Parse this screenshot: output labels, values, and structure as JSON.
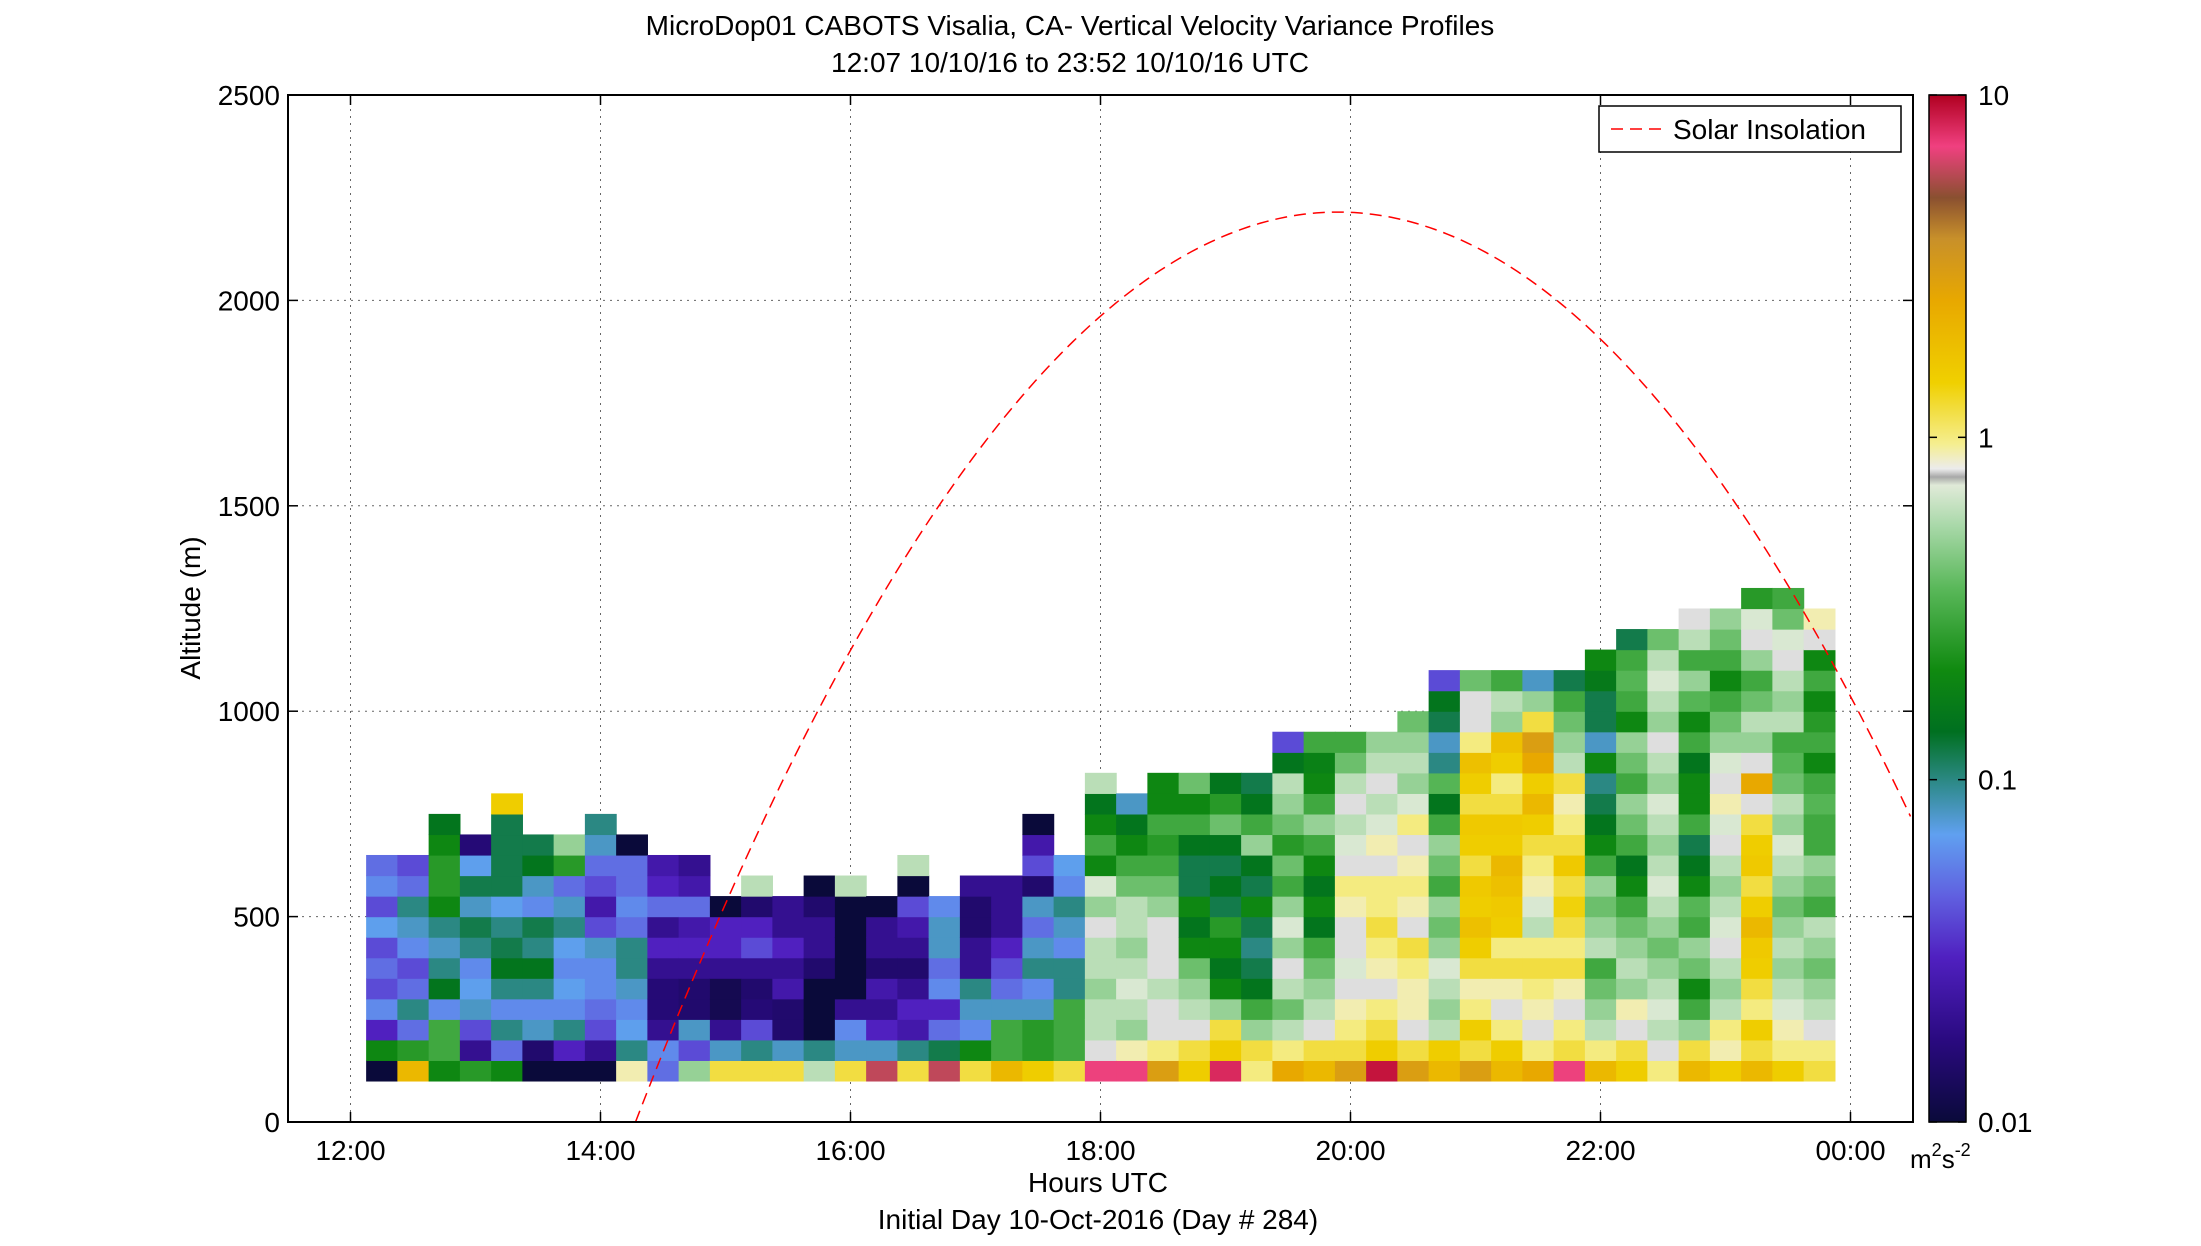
{
  "chart_data": {
    "type": "heatmap",
    "title_line1": "MicroDop01 CABOTS Visalia, CA- Vertical Velocity Variance Profiles",
    "title_line2": "12:07 10/10/16 to 23:52 10/10/16  UTC",
    "xlabel": "Hours UTC",
    "xlabel2": "Initial Day 10-Oct-2016 (Day # 284)",
    "ylabel": "Altitude (m)",
    "xlim": [
      11.5,
      24.5
    ],
    "ylim": [
      0,
      2500
    ],
    "x_ticks": [
      12,
      14,
      16,
      18,
      20,
      22,
      24
    ],
    "x_tick_labels": [
      "12:00",
      "14:00",
      "16:00",
      "18:00",
      "20:00",
      "22:00",
      "00:00"
    ],
    "y_ticks": [
      0,
      500,
      1000,
      1500,
      2000,
      2500
    ],
    "y_tick_labels": [
      "0",
      "500",
      "1000",
      "1500",
      "2000",
      "2500"
    ],
    "grid": true,
    "legend": {
      "position": "top-right",
      "entries": [
        {
          "label": "Solar Insolation",
          "color": "#ff0000",
          "style": "dashed"
        }
      ]
    },
    "colorbar": {
      "scale": "log",
      "range": [
        0.01,
        10
      ],
      "tick_values": [
        0.01,
        0.1,
        1,
        10
      ],
      "tick_labels": [
        "0.01",
        "0.1",
        "1",
        "10"
      ],
      "unit_base": "m",
      "unit_exp1": "2",
      "unit_mid": "s",
      "unit_exp2": "-2",
      "stops": [
        {
          "v": 0.0,
          "c": "#0a0a3a"
        },
        {
          "v": 0.08,
          "c": "#2a0a80"
        },
        {
          "v": 0.16,
          "c": "#5020c0"
        },
        {
          "v": 0.22,
          "c": "#6060e0"
        },
        {
          "v": 0.28,
          "c": "#60a0f0"
        },
        {
          "v": 0.33,
          "c": "#2e8a8a"
        },
        {
          "v": 0.38,
          "c": "#007020"
        },
        {
          "v": 0.44,
          "c": "#108a10"
        },
        {
          "v": 0.52,
          "c": "#5ab85a"
        },
        {
          "v": 0.58,
          "c": "#a8d8a8"
        },
        {
          "v": 0.62,
          "c": "#e0ead8"
        },
        {
          "v": 0.628,
          "c": "#a8a8a8"
        },
        {
          "v": 0.636,
          "c": "#ececec"
        },
        {
          "v": 0.66,
          "c": "#f5ee90"
        },
        {
          "v": 0.72,
          "c": "#f0d000"
        },
        {
          "v": 0.8,
          "c": "#e8a800"
        },
        {
          "v": 0.86,
          "c": "#c8902a"
        },
        {
          "v": 0.9,
          "c": "#8a5030"
        },
        {
          "v": 0.95,
          "c": "#f04080"
        },
        {
          "v": 1.0,
          "c": "#b00020"
        }
      ]
    },
    "time_bins": [
      12.25,
      12.5,
      12.75,
      13.0,
      13.25,
      13.5,
      13.75,
      14.0,
      14.25,
      14.5,
      14.75,
      15.0,
      15.25,
      15.5,
      15.75,
      16.0,
      16.25,
      16.5,
      16.75,
      17.0,
      17.25,
      17.5,
      17.75,
      18.0,
      18.25,
      18.5,
      18.75,
      19.0,
      19.25,
      19.5,
      19.75,
      20.0,
      20.25,
      20.5,
      20.75,
      21.0,
      21.25,
      21.5,
      21.75,
      22.0,
      22.25,
      22.5,
      22.75,
      23.0,
      23.25,
      23.5,
      23.75
    ],
    "bin_width_hours": 0.25,
    "gate_bottom_m": 100,
    "gate_height_m": 50,
    "variance_columns": [
      [
        0.01,
        0.2,
        0.03,
        0.06,
        0.04,
        0.05,
        0.04,
        0.07,
        0.04,
        0.06,
        0.05
      ],
      [
        2.0,
        0.25,
        0.05,
        0.1,
        0.05,
        0.04,
        0.06,
        0.08,
        0.1,
        0.05,
        0.04
      ],
      [
        0.2,
        0.3,
        0.3,
        0.06,
        0.15,
        0.1,
        0.08,
        0.1,
        0.2,
        0.25,
        0.25,
        0.2,
        0.15
      ],
      [
        0.25,
        0.02,
        0.04,
        0.08,
        0.07,
        0.06,
        0.1,
        0.12,
        0.08,
        0.12,
        0.07,
        0.016
      ],
      [
        0.2,
        0.05,
        0.1,
        0.06,
        0.1,
        0.15,
        0.12,
        0.1,
        0.07,
        0.12,
        0.12,
        0.12,
        0.12,
        1.5
      ],
      [
        0.01,
        0.015,
        0.08,
        0.06,
        0.1,
        0.15,
        0.1,
        0.12,
        0.06,
        0.08,
        0.15,
        0.12
      ],
      [
        0.01,
        0.03,
        0.1,
        0.06,
        0.07,
        0.06,
        0.07,
        0.1,
        0.08,
        0.05,
        0.25,
        0.5
      ],
      [
        0.01,
        0.02,
        0.04,
        0.05,
        0.06,
        0.06,
        0.08,
        0.04,
        0.025,
        0.04,
        0.05,
        0.08,
        0.1
      ],
      [
        0.9,
        0.1,
        0.07,
        0.06,
        0.08,
        0.1,
        0.1,
        0.05,
        0.06,
        0.05,
        0.05,
        0.01
      ],
      [
        0.05,
        0.06,
        0.02,
        0.016,
        0.016,
        0.02,
        0.03,
        0.02,
        0.05,
        0.03,
        0.025
      ],
      [
        0.5,
        0.04,
        0.08,
        0.015,
        0.015,
        0.02,
        0.03,
        0.025,
        0.05,
        0.025,
        0.02
      ],
      [
        1.2,
        0.08,
        0.02,
        0.012,
        0.012,
        0.02,
        0.03,
        0.03,
        0.01
      ],
      [
        1.2,
        0.1,
        0.04,
        0.016,
        0.015,
        0.02,
        0.04,
        0.03,
        0.015,
        0.6
      ],
      [
        1.2,
        0.08,
        0.015,
        0.015,
        0.025,
        0.02,
        0.03,
        0.02,
        0.02
      ],
      [
        0.6,
        0.1,
        0.01,
        0.01,
        0.01,
        0.015,
        0.02,
        0.02,
        0.015,
        0.01
      ],
      [
        1.2,
        0.08,
        0.06,
        0.02,
        0.01,
        0.01,
        0.01,
        0.01,
        0.01,
        0.6
      ],
      [
        6.0,
        0.08,
        0.03,
        0.02,
        0.025,
        0.015,
        0.02,
        0.02,
        0.01
      ],
      [
        1.2,
        0.1,
        0.025,
        0.03,
        0.02,
        0.015,
        0.02,
        0.025,
        0.04,
        0.01,
        0.6
      ],
      [
        6.0,
        0.12,
        0.05,
        0.03,
        0.06,
        0.05,
        0.08,
        0.08,
        0.06
      ],
      [
        1.2,
        0.2,
        0.06,
        0.08,
        0.1,
        0.02,
        0.02,
        0.015,
        0.015,
        0.02
      ],
      [
        2.0,
        0.3,
        0.3,
        0.08,
        0.05,
        0.04,
        0.03,
        0.02,
        0.02,
        0.02
      ],
      [
        1.5,
        0.25,
        0.25,
        0.08,
        0.06,
        0.1,
        0.08,
        0.05,
        0.08,
        0.015,
        0.04,
        0.025,
        0.01
      ],
      [
        1.2,
        0.3,
        0.3,
        0.3,
        0.1,
        0.1,
        0.06,
        0.08,
        0.1,
        0.06,
        0.07
      ],
      [
        7.0,
        0.8,
        0.6,
        0.6,
        0.5,
        0.6,
        0.6,
        0.8,
        0.5,
        0.7,
        0.2,
        0.3,
        0.2,
        0.15,
        0.6
      ],
      [
        7.0,
        0.9,
        0.5,
        0.6,
        0.7,
        0.6,
        0.5,
        0.6,
        0.6,
        0.4,
        0.3,
        0.2,
        0.15,
        0.08
      ],
      [
        3.0,
        1.0,
        0.8,
        0.8,
        0.6,
        0.8,
        0.8,
        0.8,
        0.5,
        0.4,
        0.3,
        0.25,
        0.3,
        0.2,
        0.2
      ],
      [
        1.5,
        1.2,
        0.8,
        0.6,
        0.5,
        0.4,
        0.2,
        0.15,
        0.2,
        0.12,
        0.12,
        0.15,
        0.3,
        0.2,
        0.4
      ],
      [
        8.0,
        1.5,
        1.2,
        0.5,
        0.2,
        0.15,
        0.2,
        0.25,
        0.12,
        0.15,
        0.12,
        0.15,
        0.4,
        0.25,
        0.15
      ],
      [
        1.0,
        1.2,
        0.5,
        0.3,
        0.15,
        0.12,
        0.1,
        0.12,
        0.2,
        0.12,
        0.15,
        0.5,
        0.3,
        0.15,
        0.12
      ],
      [
        2.5,
        1.0,
        0.6,
        0.4,
        0.6,
        0.8,
        0.5,
        0.7,
        0.5,
        0.3,
        0.4,
        0.25,
        0.4,
        0.5,
        0.6,
        0.15,
        0.04
      ],
      [
        2.0,
        1.2,
        0.8,
        0.6,
        0.5,
        0.4,
        0.3,
        0.15,
        0.2,
        0.15,
        0.2,
        0.3,
        0.5,
        0.3,
        0.2,
        0.18,
        0.3
      ],
      [
        3.0,
        1.2,
        1.0,
        0.9,
        0.8,
        0.7,
        0.8,
        0.8,
        0.9,
        1.0,
        0.8,
        0.7,
        0.6,
        0.8,
        0.6,
        0.4,
        0.3
      ],
      [
        9.0,
        1.5,
        1.2,
        1.0,
        0.8,
        0.9,
        1.0,
        1.2,
        1.0,
        1.0,
        0.8,
        0.9,
        0.7,
        0.6,
        0.8,
        0.6,
        0.5
      ],
      [
        3.0,
        1.2,
        0.8,
        0.9,
        0.9,
        1.0,
        1.2,
        0.8,
        0.9,
        1.0,
        0.9,
        0.8,
        1.0,
        0.7,
        0.5,
        0.6,
        0.5,
        0.4
      ],
      [
        2.0,
        1.5,
        0.6,
        0.5,
        0.6,
        0.7,
        0.5,
        0.4,
        0.5,
        0.3,
        0.4,
        0.5,
        0.3,
        0.15,
        0.35,
        0.1,
        0.08,
        0.12,
        0.15,
        0.04
      ],
      [
        3.0,
        1.2,
        1.5,
        1.0,
        0.9,
        1.2,
        1.5,
        1.8,
        1.5,
        1.6,
        1.2,
        1.5,
        1.6,
        1.2,
        1.5,
        1.8,
        1.0,
        0.8,
        0.8,
        0.4
      ],
      [
        2.0,
        1.5,
        1.0,
        0.8,
        0.9,
        1.2,
        1.0,
        1.5,
        1.6,
        1.8,
        2.0,
        1.5,
        1.6,
        1.2,
        1.0,
        1.5,
        1.8,
        0.5,
        0.6,
        0.3
      ],
      [
        2.5,
        1.0,
        0.8,
        0.9,
        1.0,
        1.2,
        1.0,
        0.6,
        0.7,
        0.9,
        1.0,
        1.2,
        1.5,
        2.0,
        1.5,
        2.5,
        3.0,
        1.2,
        0.5,
        0.08
      ],
      [
        7.0,
        1.2,
        1.0,
        0.8,
        0.9,
        1.2,
        1.0,
        1.2,
        1.4,
        1.2,
        1.6,
        1.2,
        1.0,
        0.9,
        1.2,
        0.6,
        0.5,
        0.4,
        0.3,
        0.12
      ],
      [
        2.0,
        1.0,
        0.6,
        0.5,
        0.4,
        0.3,
        0.6,
        0.5,
        0.4,
        0.5,
        0.3,
        0.2,
        0.15,
        0.12,
        0.1,
        0.2,
        0.08,
        0.12,
        0.12,
        0.16,
        0.2
      ],
      [
        1.5,
        1.2,
        0.8,
        0.9,
        0.5,
        0.6,
        0.5,
        0.4,
        0.3,
        0.2,
        0.15,
        0.3,
        0.4,
        0.5,
        0.3,
        0.4,
        0.5,
        0.2,
        0.3,
        0.35,
        0.3,
        0.12
      ],
      [
        1.0,
        0.8,
        0.6,
        0.7,
        0.6,
        0.5,
        0.4,
        0.5,
        0.6,
        0.7,
        0.6,
        0.5,
        0.6,
        0.7,
        0.5,
        0.6,
        0.8,
        0.5,
        0.6,
        0.7,
        0.6,
        0.4
      ],
      [
        2.0,
        1.2,
        0.5,
        0.3,
        0.2,
        0.4,
        0.5,
        0.3,
        0.35,
        0.2,
        0.15,
        0.12,
        0.3,
        0.2,
        0.2,
        0.15,
        0.3,
        0.2,
        0.35,
        0.5,
        0.3,
        0.6,
        0.8
      ],
      [
        1.5,
        0.9,
        1.0,
        0.6,
        0.5,
        0.6,
        0.8,
        0.7,
        0.6,
        0.5,
        0.6,
        0.8,
        0.7,
        0.9,
        0.8,
        0.7,
        0.5,
        0.4,
        0.3,
        0.2,
        0.3,
        0.4,
        0.5
      ],
      [
        2.0,
        1.2,
        1.5,
        1.0,
        1.2,
        1.5,
        1.6,
        2.0,
        1.5,
        1.2,
        1.6,
        1.5,
        1.2,
        0.8,
        2.5,
        0.8,
        0.5,
        0.6,
        0.4,
        0.3,
        0.5,
        0.8,
        0.7,
        0.25
      ],
      [
        1.5,
        1.0,
        0.9,
        0.7,
        0.6,
        0.5,
        0.6,
        0.5,
        0.4,
        0.5,
        0.6,
        0.7,
        0.5,
        0.6,
        0.4,
        0.35,
        0.3,
        0.6,
        0.5,
        0.6,
        0.8,
        0.7,
        0.4,
        0.3
      ],
      [
        1.2,
        1.0,
        0.8,
        0.6,
        0.5,
        0.4,
        0.5,
        0.6,
        0.3,
        0.4,
        0.5,
        0.3,
        0.3,
        0.35,
        0.3,
        0.2,
        0.3,
        0.25,
        0.2,
        0.3,
        0.2,
        0.8,
        0.9
      ]
    ],
    "solar_insolation_curve": {
      "peak_time_hours": 19.9,
      "peak_altitude_m": 2215,
      "half_width_hours": 5.62
    }
  }
}
